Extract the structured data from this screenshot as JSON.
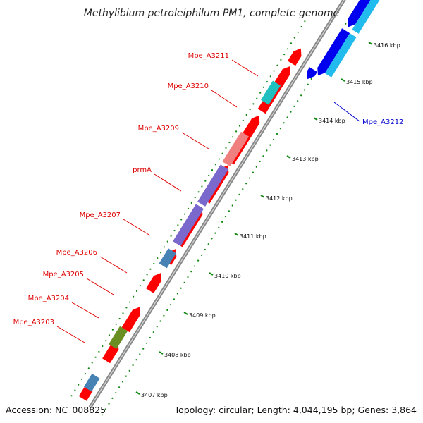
{
  "header": {
    "title": "Methylibium petroleiphilum PM1, complete genome"
  },
  "footer": {
    "accession": "Accession: NC_008825",
    "topology": "Topology: circular; Length: 4,044,195 bp; Genes: 3,864"
  },
  "colors": {
    "forward_strand": "#ff0000",
    "reverse_strand": "#0000ee",
    "label_red": "#dd0000",
    "label_blue": "#0000cc",
    "backbone": "#888888",
    "tick_dots": "#118811"
  },
  "scale_ticks": [
    {
      "label": "3407 kbp"
    },
    {
      "label": "3408 kbp"
    },
    {
      "label": "3409 kbp"
    },
    {
      "label": "3410 kbp"
    },
    {
      "label": "3411 kbp"
    },
    {
      "label": "3412 kbp"
    },
    {
      "label": "3413 kbp"
    },
    {
      "label": "3414 kbp"
    },
    {
      "label": "3415 kbp"
    },
    {
      "label": "3416 kbp"
    }
  ],
  "gene_labels": [
    {
      "name": "Mpe_A3211",
      "color": "#dd0000"
    },
    {
      "name": "Mpe_A3210",
      "color": "#dd0000"
    },
    {
      "name": "Mpe_A3209",
      "color": "#dd0000"
    },
    {
      "name": "prmA",
      "color": "#dd0000"
    },
    {
      "name": "Mpe_A3207",
      "color": "#dd0000"
    },
    {
      "name": "Mpe_A3206",
      "color": "#dd0000"
    },
    {
      "name": "Mpe_A3205",
      "color": "#dd0000"
    },
    {
      "name": "Mpe_A3204",
      "color": "#dd0000"
    },
    {
      "name": "Mpe_A3203",
      "color": "#dd0000"
    },
    {
      "name": "Mpe_A3212",
      "color": "#0000cc"
    }
  ]
}
